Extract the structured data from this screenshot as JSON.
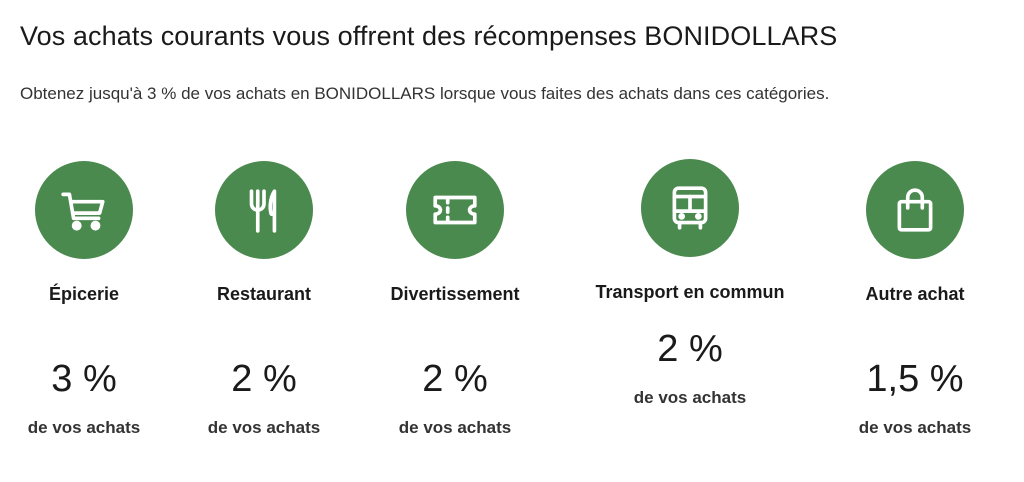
{
  "header": {
    "title": "Vos achats courants vous offrent des récompenses BONIDOLLARS",
    "subtitle": "Obtenez jusqu'à 3 % de vos achats en BONIDOLLARS lorsque vous faites des achats dans ces catégories."
  },
  "accent_color": "#4a8a4f",
  "categories": [
    {
      "name": "Épicerie",
      "percent": "3 %",
      "note": "de vos achats",
      "icon": "shopping-cart-icon"
    },
    {
      "name": "Restaurant",
      "percent": "2 %",
      "note": "de vos achats",
      "icon": "fork-knife-icon"
    },
    {
      "name": "Divertissement",
      "percent": "2 %",
      "note": "de vos achats",
      "icon": "ticket-icon"
    },
    {
      "name": "Transport en commun",
      "percent": "2 %",
      "note": "de vos achats",
      "icon": "bus-icon"
    },
    {
      "name": "Autre achat",
      "percent": "1,5 %",
      "note": "de vos achats",
      "icon": "shopping-bag-icon"
    }
  ]
}
